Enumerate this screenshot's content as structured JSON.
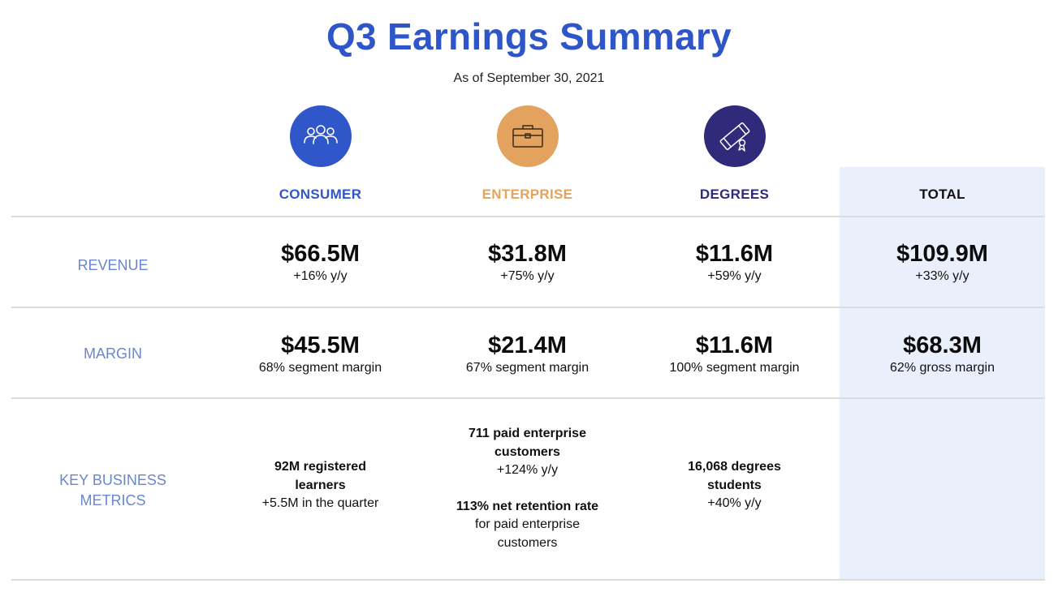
{
  "title": "Q3 Earnings Summary",
  "subtitle": "As of September 30, 2021",
  "colors": {
    "consumer": "#3057c9",
    "enterprise": "#e3a35f",
    "degrees": "#2f2a7a",
    "title": "#2f56c9",
    "row_label": "#6a86cf",
    "total_bg": "#e9effb"
  },
  "columns": {
    "consumer": {
      "label": "CONSUMER",
      "icon": "people-group-icon"
    },
    "enterprise": {
      "label": "ENTERPRISE",
      "icon": "briefcase-icon"
    },
    "degrees": {
      "label": "DEGREES",
      "icon": "diploma-icon"
    },
    "total": {
      "label": "TOTAL"
    }
  },
  "rows": {
    "revenue": {
      "label": "REVENUE",
      "consumer": {
        "value": "$66.5M",
        "note": "+16% y/y"
      },
      "enterprise": {
        "value": "$31.8M",
        "note": "+75% y/y"
      },
      "degrees": {
        "value": "$11.6M",
        "note": "+59% y/y"
      },
      "total": {
        "value": "$109.9M",
        "note": "+33% y/y"
      }
    },
    "margin": {
      "label": "MARGIN",
      "consumer": {
        "value": "$45.5M",
        "note": "68% segment margin"
      },
      "enterprise": {
        "value": "$21.4M",
        "note": "67% segment margin"
      },
      "degrees": {
        "value": "$11.6M",
        "note": "100% segment margin"
      },
      "total": {
        "value": "$68.3M",
        "note": "62% gross margin"
      }
    },
    "key_metrics": {
      "label_line1": "KEY BUSINESS",
      "label_line2": "METRICS",
      "consumer": {
        "bold_line1": "92M registered",
        "bold_line2": "learners",
        "note": "+5.5M in the quarter"
      },
      "enterprise": {
        "bold_a_line1": "711 paid enterprise",
        "bold_a_line2": "customers",
        "note_a": "+124% y/y",
        "bold_b": "113% net retention rate",
        "note_b_line1": "for paid enterprise",
        "note_b_line2": "customers"
      },
      "degrees": {
        "bold_line1": "16,068 degrees",
        "bold_line2": "students",
        "note": "+40% y/y"
      }
    }
  }
}
